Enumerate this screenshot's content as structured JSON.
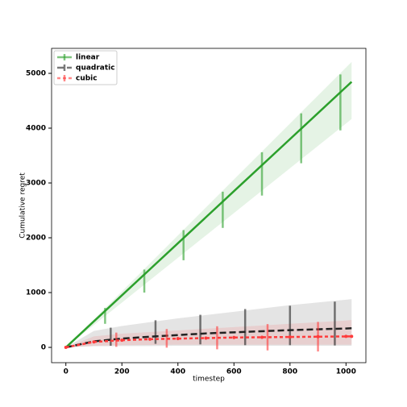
{
  "chart_data": {
    "type": "line",
    "x_label": "timestep",
    "y_label": "Cumulative regret",
    "xlim": [
      -51,
      1071
    ],
    "ylim": [
      -279,
      5456
    ],
    "xticks": [
      0,
      200,
      400,
      600,
      800,
      1000
    ],
    "yticks": [
      0,
      1000,
      2000,
      3000,
      4000,
      5000
    ],
    "legend": "upper left",
    "series": [
      {
        "name": "linear",
        "color": "#2ca02c",
        "linestyle": "solid",
        "marker": "none",
        "x": [
          0,
          100,
          200,
          300,
          400,
          500,
          600,
          700,
          800,
          900,
          1000,
          1020
        ],
        "values": [
          0,
          475,
          950,
          1425,
          1900,
          2375,
          2850,
          3325,
          3800,
          4275,
          4750,
          4845
        ],
        "lower": [
          0,
          409,
          817,
          1226,
          1634,
          2043,
          2451,
          2860,
          3268,
          3677,
          4085,
          4167
        ],
        "upper": [
          0,
          511,
          1021,
          1532,
          2043,
          2553,
          3064,
          3574,
          4085,
          4596,
          5106,
          5208
        ],
        "errorbars": {
          "x": [
            140,
            280,
            420,
            560,
            700,
            840,
            980
          ],
          "values": [
            575,
            1210,
            1865,
            2510,
            3165,
            3815,
            4470
          ],
          "errors": [
            145,
            210,
            275,
            330,
            395,
            455,
            510
          ]
        }
      },
      {
        "name": "quadratic",
        "color": "#222222",
        "linestyle": "dashed",
        "marker": "none",
        "x": [
          0,
          100,
          200,
          300,
          400,
          500,
          600,
          700,
          800,
          900,
          1000,
          1020
        ],
        "values": [
          0,
          110,
          160,
          195,
          225,
          255,
          275,
          295,
          315,
          330,
          345,
          350
        ],
        "lower": [
          0,
          20,
          25,
          25,
          30,
          30,
          30,
          30,
          30,
          30,
          30,
          30
        ],
        "upper": [
          0,
          300,
          390,
          460,
          530,
          590,
          650,
          710,
          770,
          820,
          870,
          880
        ],
        "errorbars": {
          "x": [
            160,
            320,
            480,
            640,
            800,
            960
          ],
          "values": [
            195,
            280,
            325,
            370,
            400,
            435
          ],
          "errors": [
            165,
            215,
            270,
            330,
            360,
            400
          ]
        }
      },
      {
        "name": "cubic",
        "color": "#ff3b3b",
        "linestyle": "dotted",
        "marker": "o",
        "x": [
          0,
          100,
          200,
          300,
          400,
          500,
          600,
          700,
          800,
          900,
          1000,
          1020
        ],
        "values": [
          0,
          100,
          130,
          150,
          160,
          170,
          180,
          185,
          190,
          195,
          200,
          200
        ],
        "lower": [
          0,
          30,
          40,
          45,
          50,
          50,
          50,
          50,
          50,
          50,
          50,
          50
        ],
        "upper": [
          0,
          200,
          250,
          280,
          310,
          340,
          370,
          400,
          430,
          460,
          490,
          500
        ],
        "errorbars": {
          "x": [
            180,
            360,
            540,
            720,
            900
          ],
          "values": [
            140,
            165,
            175,
            185,
            195
          ],
          "errors": [
            130,
            170,
            210,
            240,
            270
          ]
        }
      }
    ]
  }
}
